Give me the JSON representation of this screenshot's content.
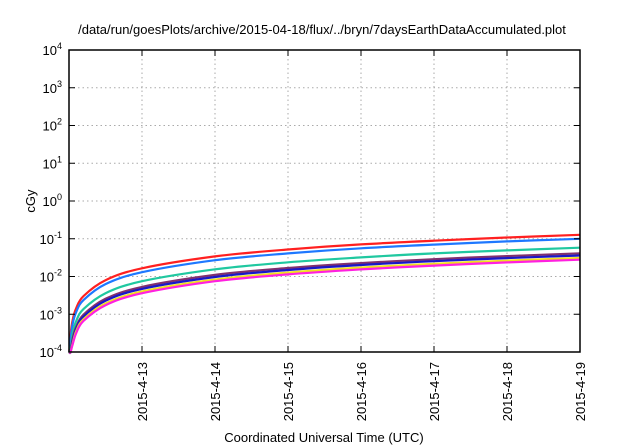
{
  "chart_data": {
    "type": "line",
    "title": "/data/run/goesPlots/archive/2015-04-18/flux/../bryn/7daysEarthDataAccumulated.plot",
    "xlabel": "Coordinated Universal Time (UTC)",
    "ylabel": "cGy",
    "x_unit": "days since 2015-04-12 00:00 UTC",
    "xlim": [
      0,
      7
    ],
    "ylim": [
      0.0001,
      10000
    ],
    "yscale": "log",
    "grid": true,
    "legend": "none",
    "xticks": [
      {
        "value": 1,
        "label": "2015-4-13"
      },
      {
        "value": 2,
        "label": "2015-4-14"
      },
      {
        "value": 3,
        "label": "2015-4-15"
      },
      {
        "value": 4,
        "label": "2015-4-16"
      },
      {
        "value": 5,
        "label": "2015-4-17"
      },
      {
        "value": 6,
        "label": "2015-4-18"
      },
      {
        "value": 7,
        "label": "2015-4-19"
      }
    ],
    "yticks": [
      {
        "value": 0.0001,
        "base": "10",
        "exp": "-4"
      },
      {
        "value": 0.001,
        "base": "10",
        "exp": "-3"
      },
      {
        "value": 0.01,
        "base": "10",
        "exp": "-2"
      },
      {
        "value": 0.1,
        "base": "10",
        "exp": "-1"
      },
      {
        "value": 1,
        "base": "10",
        "exp": "0"
      },
      {
        "value": 10,
        "base": "10",
        "exp": "1"
      },
      {
        "value": 100,
        "base": "10",
        "exp": "2"
      },
      {
        "value": 1000,
        "base": "10",
        "exp": "3"
      },
      {
        "value": 10000,
        "base": "10",
        "exp": "4"
      }
    ],
    "x": [
      0.02,
      0.05,
      0.1,
      0.2,
      0.5,
      1,
      2,
      3,
      4,
      5,
      6,
      7
    ],
    "series": [
      {
        "name": "red",
        "color": "#ff2020",
        "values": [
          0.00027,
          0.00071,
          0.00147,
          0.00305,
          0.008,
          0.0165,
          0.034,
          0.052,
          0.071,
          0.089,
          0.108,
          0.127
        ]
      },
      {
        "name": "blue",
        "color": "#1e78ff",
        "values": [
          0.00021,
          0.00056,
          0.00116,
          0.0024,
          0.0063,
          0.013,
          0.027,
          0.041,
          0.056,
          0.07,
          0.085,
          0.1
        ]
      },
      {
        "name": "green",
        "color": "#20c8a0",
        "values": [
          0.00012,
          0.00032,
          0.00067,
          0.00139,
          0.0036,
          0.0075,
          0.0155,
          0.0238,
          0.032,
          0.041,
          0.049,
          0.058
        ]
      },
      {
        "name": "purple",
        "color": "#80306e",
        "values": [
          8.7e-05,
          0.00023,
          0.00047,
          0.00098,
          0.00256,
          0.0053,
          0.011,
          0.0168,
          0.0227,
          0.0287,
          0.0348,
          0.041
        ]
      },
      {
        "name": "navy",
        "color": "#1818c8",
        "values": [
          7.7e-05,
          0.0002,
          0.00042,
          0.00087,
          0.00227,
          0.0047,
          0.0097,
          0.0149,
          0.0202,
          0.0255,
          0.0308,
          0.036
        ]
      },
      {
        "name": "yellow",
        "color": "#f0e020",
        "values": [
          6.6e-05,
          0.00017,
          0.00036,
          0.00074,
          0.00193,
          0.004,
          0.0083,
          0.0127,
          0.0172,
          0.0217,
          0.0262,
          0.031
        ]
      },
      {
        "name": "magenta",
        "color": "#ff20e0",
        "values": [
          5.9e-05,
          0.00016,
          0.00032,
          0.00067,
          0.00174,
          0.0036,
          0.0075,
          0.0114,
          0.0154,
          0.0195,
          0.0236,
          0.0278
        ]
      }
    ]
  }
}
